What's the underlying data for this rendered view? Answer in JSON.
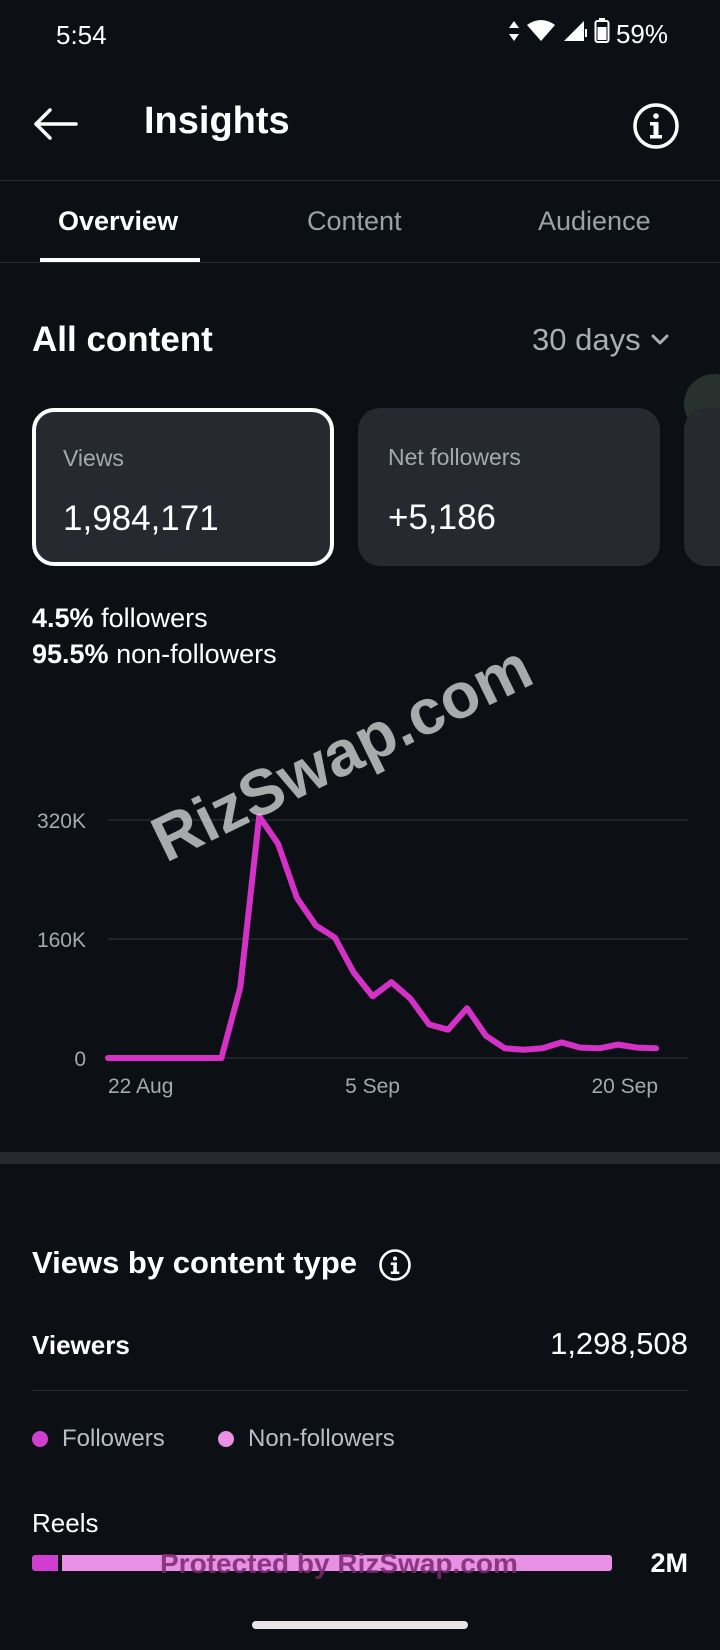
{
  "status": {
    "time": "5:54",
    "battery": "59%"
  },
  "header": {
    "title": "Insights"
  },
  "tabs": [
    {
      "label": "Overview",
      "active": true
    },
    {
      "label": "Content",
      "active": false
    },
    {
      "label": "Audience",
      "active": false
    }
  ],
  "section": {
    "title": "All content",
    "range": "30 days"
  },
  "cards": [
    {
      "label": "Views",
      "value": "1,984,171"
    },
    {
      "label": "Net followers",
      "value": "+5,186"
    }
  ],
  "breakdown": {
    "followers_pct": "4.5%",
    "followers_label": "followers",
    "nonfollowers_pct": "95.5%",
    "nonfollowers_label": "non-followers"
  },
  "chart_data": {
    "type": "line",
    "x": [
      "22 Aug",
      "23 Aug",
      "24 Aug",
      "25 Aug",
      "26 Aug",
      "27 Aug",
      "28 Aug",
      "29 Aug",
      "30 Aug",
      "31 Aug",
      "1 Sep",
      "2 Sep",
      "3 Sep",
      "4 Sep",
      "5 Sep",
      "6 Sep",
      "7 Sep",
      "8 Sep",
      "9 Sep",
      "10 Sep",
      "11 Sep",
      "12 Sep",
      "13 Sep",
      "14 Sep",
      "15 Sep",
      "16 Sep",
      "17 Sep",
      "18 Sep",
      "19 Sep",
      "20 Sep"
    ],
    "series": [
      {
        "values": [
          0,
          0,
          0,
          0,
          0,
          0,
          0,
          95000,
          325000,
          288000,
          215000,
          178000,
          162000,
          115000,
          83000,
          102000,
          80000,
          45000,
          38000,
          67000,
          30000,
          13000,
          11000,
          13000,
          21000,
          14000,
          13000,
          18000,
          14000,
          13000
        ]
      }
    ],
    "ytick_labels": [
      "0",
      "160K",
      "320K"
    ],
    "yticks": [
      0,
      160000,
      320000
    ],
    "xtick_labels": [
      "22 Aug",
      "5 Sep",
      "20 Sep"
    ],
    "ylim": [
      0,
      320000
    ],
    "grid": true,
    "color": "#d432c6"
  },
  "content_type": {
    "title": "Views by content type",
    "viewers_label": "Viewers",
    "viewers_value": "1,298,508",
    "legend": [
      {
        "label": "Followers",
        "color": "#d03ecf"
      },
      {
        "label": "Non-followers",
        "color": "#e98fe4"
      }
    ],
    "rows": [
      {
        "label": "Reels",
        "value": "2M",
        "followers_fraction": 0.045,
        "nonfollowers_fraction": 0.955,
        "bar_fraction": 1.0
      }
    ]
  },
  "watermarks": {
    "main": "RizSwap.com",
    "footer": "Protected by RizSwap.com"
  }
}
